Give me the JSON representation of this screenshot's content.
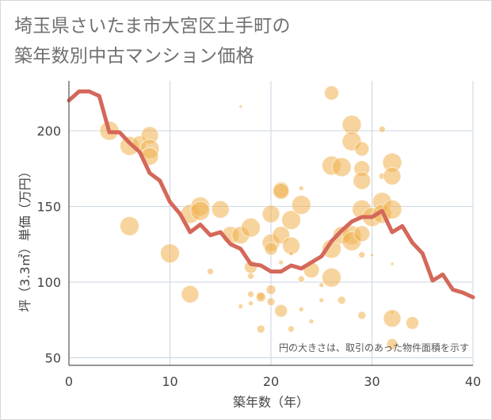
{
  "title_lines": [
    "埼玉県さいたま市大宮区土手町の",
    "築年数別中古マンション価格"
  ],
  "chart_data": {
    "type": "scatter",
    "title": "埼玉県さいたま市大宮区土手町の築年数別中古マンション価格",
    "xlabel": "築年数（年）",
    "ylabel": "坪（3.3㎡）単価（万円）",
    "xlim": [
      0,
      40
    ],
    "ylim": [
      45,
      233
    ],
    "x_ticks": [
      0,
      10,
      20,
      30,
      40
    ],
    "y_ticks": [
      50,
      100,
      150,
      200
    ],
    "grid": true,
    "note": "円の大きさは、取引のあった物件面積を示す",
    "bubble_color": "#f0b04e",
    "line_color": "#d4685a",
    "bubbles": [
      {
        "x": 4,
        "y": 200,
        "r": 12
      },
      {
        "x": 6,
        "y": 137,
        "r": 12
      },
      {
        "x": 6,
        "y": 190,
        "r": 12
      },
      {
        "x": 7,
        "y": 192,
        "r": 9
      },
      {
        "x": 8,
        "y": 197,
        "r": 11
      },
      {
        "x": 8,
        "y": 188,
        "r": 12
      },
      {
        "x": 8,
        "y": 183,
        "r": 11
      },
      {
        "x": 10,
        "y": 119,
        "r": 12
      },
      {
        "x": 12,
        "y": 92,
        "r": 11
      },
      {
        "x": 12,
        "y": 145,
        "r": 12
      },
      {
        "x": 13,
        "y": 150,
        "r": 12
      },
      {
        "x": 13,
        "y": 147,
        "r": 12
      },
      {
        "x": 14,
        "y": 107,
        "r": 4
      },
      {
        "x": 15,
        "y": 148,
        "r": 11
      },
      {
        "x": 16,
        "y": 131,
        "r": 11
      },
      {
        "x": 17,
        "y": 216,
        "r": 2
      },
      {
        "x": 17,
        "y": 84,
        "r": 3
      },
      {
        "x": 17,
        "y": 131,
        "r": 11
      },
      {
        "x": 18,
        "y": 136,
        "r": 12
      },
      {
        "x": 18,
        "y": 110,
        "r": 8
      },
      {
        "x": 18,
        "y": 104,
        "r": 4
      },
      {
        "x": 18,
        "y": 92,
        "r": 4
      },
      {
        "x": 18,
        "y": 86,
        "r": 3
      },
      {
        "x": 19,
        "y": 91,
        "r": 5
      },
      {
        "x": 19,
        "y": 90,
        "r": 6
      },
      {
        "x": 19,
        "y": 69,
        "r": 5
      },
      {
        "x": 20,
        "y": 145,
        "r": 11
      },
      {
        "x": 20,
        "y": 126,
        "r": 11
      },
      {
        "x": 20,
        "y": 95,
        "r": 6
      },
      {
        "x": 20,
        "y": 87,
        "r": 5
      },
      {
        "x": 20,
        "y": 122,
        "r": 8
      },
      {
        "x": 21,
        "y": 161,
        "r": 10
      },
      {
        "x": 21,
        "y": 160,
        "r": 10
      },
      {
        "x": 21,
        "y": 131,
        "r": 11
      },
      {
        "x": 21,
        "y": 81,
        "r": 8
      },
      {
        "x": 21,
        "y": 113,
        "r": 3
      },
      {
        "x": 22,
        "y": 124,
        "r": 11
      },
      {
        "x": 22,
        "y": 141,
        "r": 12
      },
      {
        "x": 22,
        "y": 119,
        "r": 3
      },
      {
        "x": 22,
        "y": 69,
        "r": 4
      },
      {
        "x": 23,
        "y": 151,
        "r": 12
      },
      {
        "x": 23,
        "y": 162,
        "r": 3
      },
      {
        "x": 23,
        "y": 102,
        "r": 4
      },
      {
        "x": 23,
        "y": 82,
        "r": 3
      },
      {
        "x": 24,
        "y": 108,
        "r": 10
      },
      {
        "x": 24,
        "y": 74,
        "r": 3
      },
      {
        "x": 25,
        "y": 98,
        "r": 3
      },
      {
        "x": 25,
        "y": 88,
        "r": 3
      },
      {
        "x": 26,
        "y": 225,
        "r": 9
      },
      {
        "x": 26,
        "y": 177,
        "r": 12
      },
      {
        "x": 26,
        "y": 103,
        "r": 12
      },
      {
        "x": 26,
        "y": 122,
        "r": 12
      },
      {
        "x": 27,
        "y": 176,
        "r": 12
      },
      {
        "x": 27,
        "y": 131,
        "r": 11
      },
      {
        "x": 27,
        "y": 88,
        "r": 5
      },
      {
        "x": 28,
        "y": 204,
        "r": 12
      },
      {
        "x": 28,
        "y": 193,
        "r": 12
      },
      {
        "x": 28,
        "y": 131,
        "r": 12
      },
      {
        "x": 28,
        "y": 127,
        "r": 12
      },
      {
        "x": 29,
        "y": 188,
        "r": 9
      },
      {
        "x": 29,
        "y": 175,
        "r": 10
      },
      {
        "x": 29,
        "y": 167,
        "r": 11
      },
      {
        "x": 29,
        "y": 148,
        "r": 12
      },
      {
        "x": 29,
        "y": 132,
        "r": 10
      },
      {
        "x": 29,
        "y": 118,
        "r": 4
      },
      {
        "x": 29,
        "y": 78,
        "r": 5
      },
      {
        "x": 30,
        "y": 143,
        "r": 12
      },
      {
        "x": 30,
        "y": 118,
        "r": 2
      },
      {
        "x": 31,
        "y": 201,
        "r": 4
      },
      {
        "x": 31,
        "y": 170,
        "r": 4
      },
      {
        "x": 31,
        "y": 153,
        "r": 12
      },
      {
        "x": 31,
        "y": 145,
        "r": 12
      },
      {
        "x": 32,
        "y": 179,
        "r": 12
      },
      {
        "x": 32,
        "y": 170,
        "r": 11
      },
      {
        "x": 32,
        "y": 148,
        "r": 12
      },
      {
        "x": 32,
        "y": 112,
        "r": 2
      },
      {
        "x": 32,
        "y": 80,
        "r": 2
      },
      {
        "x": 32,
        "y": 76,
        "r": 11
      },
      {
        "x": 32,
        "y": 59,
        "r": 7
      },
      {
        "x": 34,
        "y": 73,
        "r": 8
      }
    ],
    "series": [
      {
        "x": [
          0,
          1,
          2,
          3,
          4,
          5,
          6,
          7,
          8,
          9,
          10,
          11,
          12,
          13,
          14,
          15,
          16,
          17,
          18,
          19,
          20,
          21,
          22,
          23,
          24,
          25,
          26,
          27,
          28,
          29,
          30,
          31,
          32,
          33,
          34,
          35,
          36,
          37,
          38,
          39,
          40
        ],
        "values": [
          220,
          226,
          226,
          223,
          199,
          199,
          192,
          186,
          172,
          167,
          153,
          145,
          133,
          138,
          131,
          133,
          125,
          122,
          112,
          111,
          107,
          107,
          111,
          109,
          113,
          117,
          127,
          134,
          140,
          143,
          143,
          147,
          133,
          137,
          126,
          119,
          101,
          105,
          95,
          93,
          90
        ]
      }
    ]
  }
}
